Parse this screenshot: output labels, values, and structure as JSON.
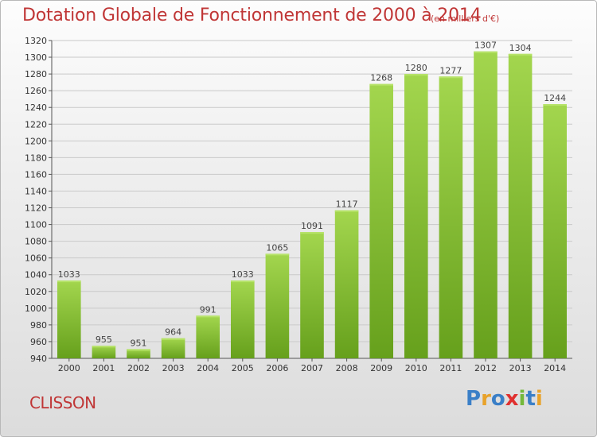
{
  "header": {
    "title": "Dotation Globale de Fonctionnement de 2000 à 2014",
    "subtitle": "(en milliers d'€)"
  },
  "footer": {
    "commune": "CLISSON",
    "logo_text": "Proxiti"
  },
  "colors": {
    "title": "#c03636",
    "bar_light": "#9fd14a",
    "bar_dark": "#6aa51f",
    "grid": "#c8c8c8"
  },
  "chart_data": {
    "type": "bar",
    "categories": [
      "2000",
      "2001",
      "2002",
      "2003",
      "2004",
      "2005",
      "2006",
      "2007",
      "2008",
      "2009",
      "2010",
      "2011",
      "2012",
      "2013",
      "2014"
    ],
    "values": [
      1033,
      955,
      951,
      964,
      991,
      1033,
      1065,
      1091,
      1117,
      1268,
      1280,
      1277,
      1307,
      1304,
      1244
    ],
    "data_labels": [
      "1033",
      "955",
      "951",
      "964",
      "991",
      "1033",
      "1065",
      "1091",
      "1117",
      "1268",
      "1280",
      "1277",
      "1307",
      "1304",
      "1244"
    ],
    "title": "Dotation Globale de Fonctionnement de 2000 à 2014",
    "subtitle": "(en milliers d'€)",
    "xlabel": "",
    "ylabel": "",
    "ylim": [
      940,
      1320
    ],
    "yticks": [
      940,
      960,
      980,
      1000,
      1020,
      1040,
      1060,
      1080,
      1100,
      1120,
      1140,
      1160,
      1180,
      1200,
      1220,
      1240,
      1260,
      1280,
      1300,
      1320
    ],
    "grid": true,
    "legend": "none"
  }
}
